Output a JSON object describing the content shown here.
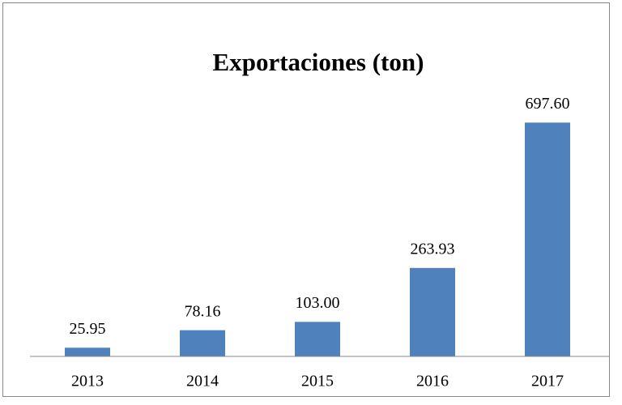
{
  "chart_data": {
    "type": "bar",
    "title": "Exportaciones (ton)",
    "categories": [
      "2013",
      "2014",
      "2015",
      "2016",
      "2017"
    ],
    "values": [
      25.95,
      78.16,
      103.0,
      263.93,
      697.6
    ],
    "value_labels": [
      "25.95",
      "78.16",
      "103.00",
      "263.93",
      "697.60"
    ],
    "color": "#4f81bd",
    "ylim": [
      0,
      800
    ]
  }
}
